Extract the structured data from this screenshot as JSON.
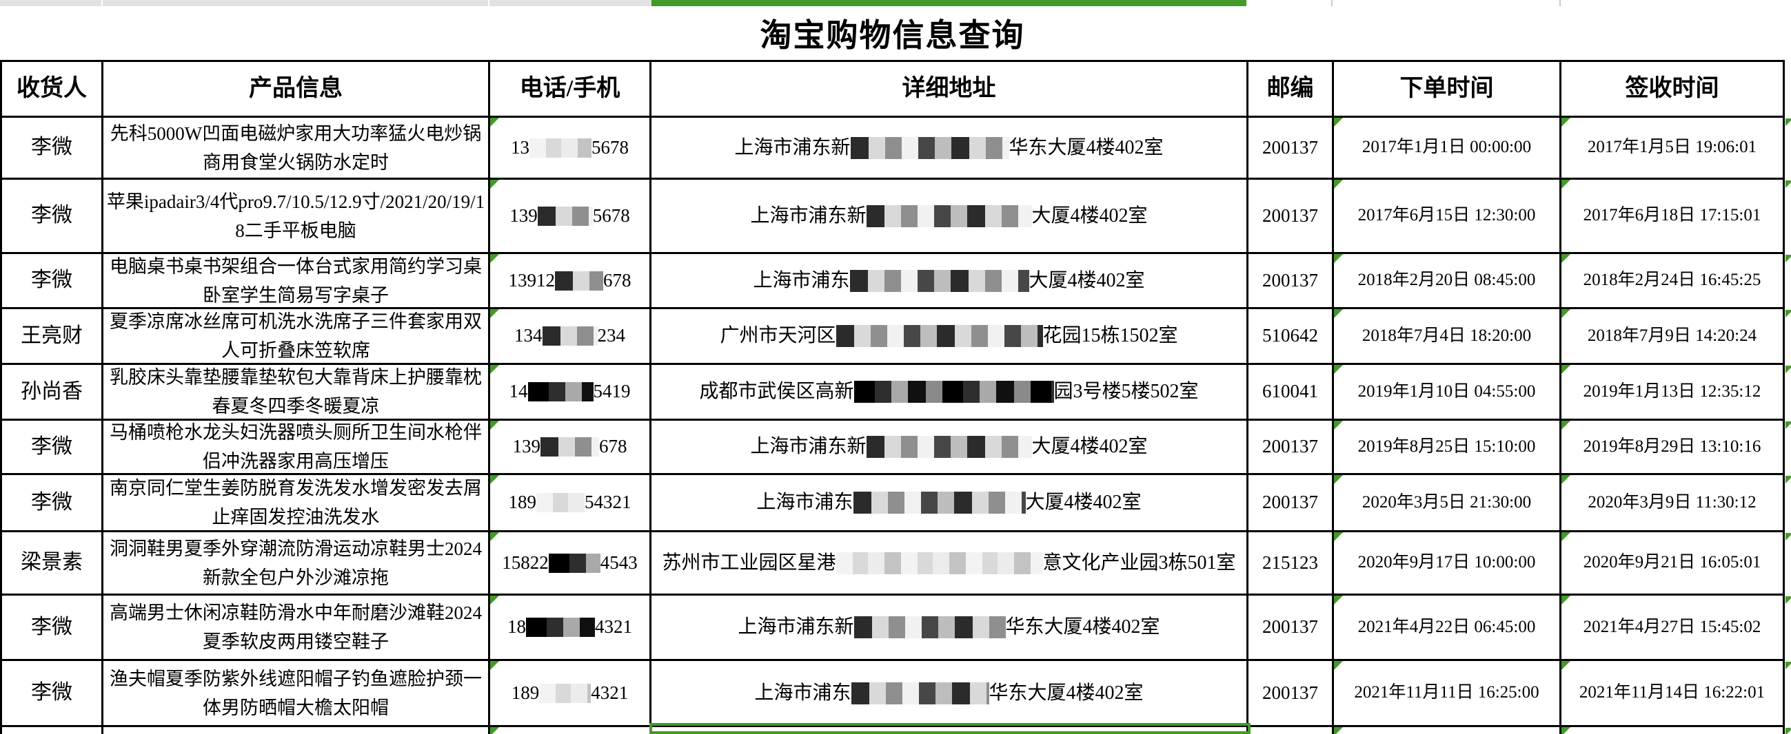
{
  "title": "淘宝购物信息查询",
  "columns": [
    "收货人",
    "产品信息",
    "电话/手机",
    "详细地址",
    "邮编",
    "下单时间",
    "签收时间"
  ],
  "rows": [
    {
      "name": "李微",
      "product": "先科5000W凹面电磁炉家用大功率猛火电炒锅商用食堂火锅防水定时",
      "phone": [
        {
          "t": "13"
        },
        {
          "m": 90,
          "v": "light"
        },
        {
          "t": "5678"
        }
      ],
      "address": [
        {
          "t": "上海市浦东新"
        },
        {
          "m": 230,
          "v": "mix"
        },
        {
          "t": "华东大厦4楼402室"
        }
      ],
      "zip": "200137",
      "order_time": "2017年1月1日 00:00:00",
      "sign_time": "2017年1月5日 19:06:01"
    },
    {
      "name": "李微",
      "product": "苹果ipadair3/4代pro9.7/10.5/12.9寸/2021/20/19/18二手平板电脑",
      "phone": [
        {
          "t": "139"
        },
        {
          "m": 80,
          "v": "mix"
        },
        {
          "t": "5678"
        }
      ],
      "address": [
        {
          "t": "上海市浦东新"
        },
        {
          "m": 240,
          "v": "mix"
        },
        {
          "t": "大厦4楼402室"
        }
      ],
      "zip": "200137",
      "order_time": "2017年6月15日 12:30:00",
      "sign_time": "2017年6月18日 17:15:01"
    },
    {
      "name": "李微",
      "product": "电脑桌书桌书架组合一体台式家用简约学习桌卧室学生简易写字桌子",
      "phone": [
        {
          "t": "13912"
        },
        {
          "m": 70,
          "v": "mix"
        },
        {
          "t": "678"
        }
      ],
      "address": [
        {
          "t": "上海市浦东"
        },
        {
          "m": 260,
          "v": "mix"
        },
        {
          "t": "大厦4楼402室"
        }
      ],
      "zip": "200137",
      "order_time": "2018年2月20日 08:45:00",
      "sign_time": "2018年2月24日 16:45:25"
    },
    {
      "name": "王亮财",
      "product": "夏季凉席冰丝席可机洗水洗席子三件套家用双人可折叠床笠软席",
      "phone": [
        {
          "t": "134"
        },
        {
          "m": 80,
          "v": "mix"
        },
        {
          "t": "234"
        }
      ],
      "address": [
        {
          "t": "广州市天河区"
        },
        {
          "m": 300,
          "v": "mix"
        },
        {
          "t": "花园15栋1502室"
        }
      ],
      "zip": "510642",
      "order_time": "2018年7月4日 18:20:00",
      "sign_time": "2018年7月9日 14:20:24"
    },
    {
      "name": "孙尚香",
      "product": "乳胶床头靠垫腰靠垫软包大靠背床上护腰靠枕春夏冬四季冬暖夏凉",
      "phone": [
        {
          "t": "14"
        },
        {
          "m": 95,
          "v": "dark"
        },
        {
          "t": "5419"
        }
      ],
      "address": [
        {
          "t": "成都市武侯区高新"
        },
        {
          "m": 290,
          "v": "dark"
        },
        {
          "t": "园3号楼5楼502室"
        }
      ],
      "zip": "610041",
      "order_time": "2019年1月10日 04:55:00",
      "sign_time": "2019年1月13日 12:35:12"
    },
    {
      "name": "李微",
      "product": "马桶喷枪水龙头妇洗器喷头厕所卫生间水枪伴侣冲洗器家用高压增压",
      "phone": [
        {
          "t": "139"
        },
        {
          "m": 85,
          "v": "mix"
        },
        {
          "t": "678"
        }
      ],
      "address": [
        {
          "t": "上海市浦东新"
        },
        {
          "m": 240,
          "v": "mix"
        },
        {
          "t": "大厦4楼402室"
        }
      ],
      "zip": "200137",
      "order_time": "2019年8月25日 15:10:00",
      "sign_time": "2019年8月29日 13:10:16"
    },
    {
      "name": "李微",
      "product": "南京同仁堂生姜防脱育发洗发水增发密发去屑止痒固发控油洗发水",
      "phone": [
        {
          "t": "189"
        },
        {
          "m": 70,
          "v": "light"
        },
        {
          "t": "54321"
        }
      ],
      "address": [
        {
          "t": "上海市浦东"
        },
        {
          "m": 250,
          "v": "mix"
        },
        {
          "t": "大厦4楼402室"
        }
      ],
      "zip": "200137",
      "order_time": "2020年3月5日 21:30:00",
      "sign_time": "2020年3月9日 11:30:12"
    },
    {
      "name": "梁景素",
      "product": "洞洞鞋男夏季外穿潮流防滑运动凉鞋男士2024新款全包户外沙滩凉拖",
      "phone": [
        {
          "t": "15822"
        },
        {
          "m": 75,
          "v": "dark"
        },
        {
          "t": "4543"
        }
      ],
      "address": [
        {
          "t": "苏州市工业园区星港"
        },
        {
          "m": 300,
          "v": "light"
        },
        {
          "t": "意文化产业园3栋501室"
        }
      ],
      "zip": "215123",
      "order_time": "2020年9月17日 10:00:00",
      "sign_time": "2020年9月21日 16:05:01"
    },
    {
      "name": "李微",
      "product": "高端男士休闲凉鞋防滑水中年耐磨沙滩鞋2024夏季软皮两用镂空鞋子",
      "phone": [
        {
          "t": "18"
        },
        {
          "m": 100,
          "v": "dark"
        },
        {
          "t": "4321"
        }
      ],
      "address": [
        {
          "t": "上海市浦东新"
        },
        {
          "m": 220,
          "v": "mix"
        },
        {
          "t": "华东大厦4楼402室"
        }
      ],
      "zip": "200137",
      "order_time": "2021年4月22日 06:45:00",
      "sign_time": "2021年4月27日 15:45:02"
    },
    {
      "name": "李微",
      "product": "渔夫帽夏季防紫外线遮阳帽子钓鱼遮脸护颈一体男防晒帽大檐太阳帽",
      "phone": [
        {
          "t": "189"
        },
        {
          "m": 75,
          "v": "light"
        },
        {
          "t": "4321"
        }
      ],
      "address": [
        {
          "t": "上海市浦东"
        },
        {
          "m": 200,
          "v": "mix"
        },
        {
          "t": "华东大厦4楼402室"
        }
      ],
      "zip": "200137",
      "order_time": "2021年11月11日 16:25:00",
      "sign_time": "2021年11月14日 16:22:01"
    }
  ],
  "flags": {
    "error_triangle_columns": [
      "电话/手机",
      "下单时间",
      "签收时间"
    ],
    "partial_row_selection_column": "详细地址"
  },
  "colors": {
    "accent_green": "#449a28",
    "grid_border": "#000000",
    "top_strip_gray": "#e2e2e2",
    "top_strip_line": "#c9c9c9"
  }
}
